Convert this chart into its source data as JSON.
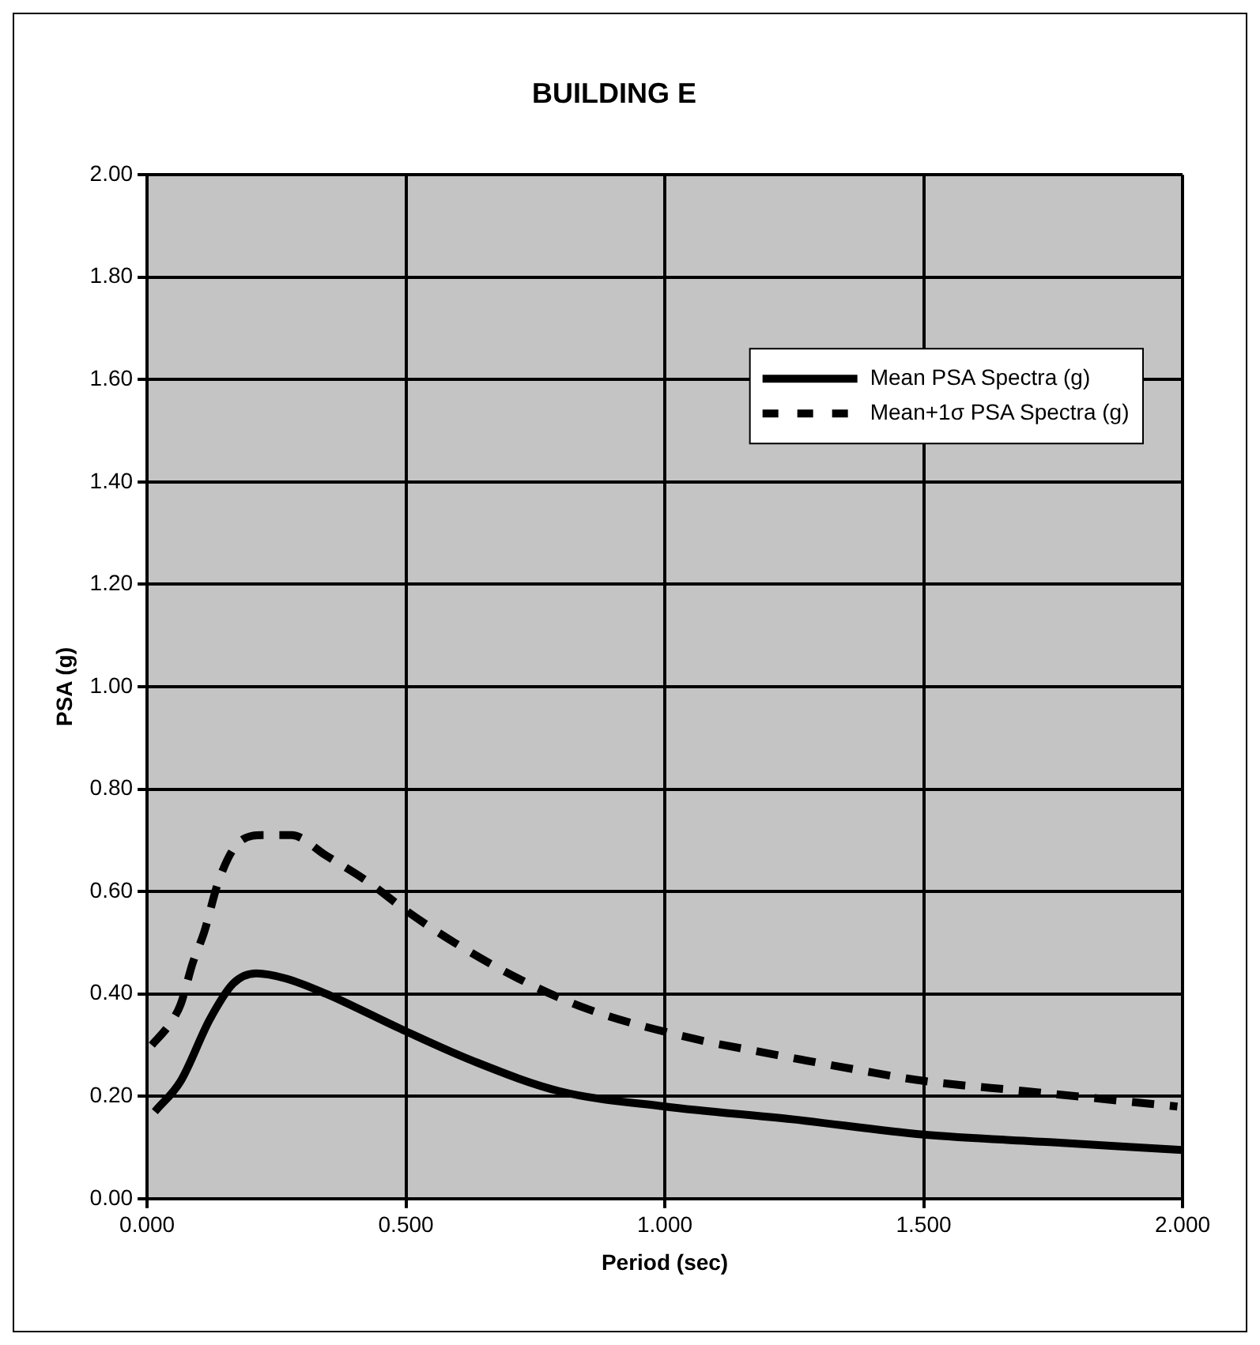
{
  "chart_data": {
    "type": "line",
    "title": "BUILDING E",
    "xlabel": "Period (sec)",
    "ylabel": "PSA (g)",
    "xlim": [
      0,
      2
    ],
    "xticks": [
      {
        "value": 0,
        "label": "0.000"
      },
      {
        "value": 0.5,
        "label": "0.500"
      },
      {
        "value": 1,
        "label": "1.000"
      },
      {
        "value": 1.5,
        "label": "1.500"
      },
      {
        "value": 2,
        "label": "2.000"
      }
    ],
    "ylim": [
      0,
      2
    ],
    "yticks": [
      {
        "value": 0,
        "label": "0.00"
      },
      {
        "value": 0.2,
        "label": "0.20"
      },
      {
        "value": 0.4,
        "label": "0.40"
      },
      {
        "value": 0.6,
        "label": "0.60"
      },
      {
        "value": 0.8,
        "label": "0.80"
      },
      {
        "value": 1,
        "label": "1.00"
      },
      {
        "value": 1.2,
        "label": "1.20"
      },
      {
        "value": 1.4,
        "label": "1.40"
      },
      {
        "value": 1.6,
        "label": "1.60"
      },
      {
        "value": 1.8,
        "label": "1.80"
      },
      {
        "value": 2,
        "label": "2.00"
      }
    ],
    "grid": true,
    "legend": "top right",
    "marker": "none",
    "series": [
      {
        "name": "Mean PSA Spectra (g)",
        "color": "#000000",
        "line_style": "solid",
        "x": [
          0.015,
          0.065,
          0.121,
          0.166,
          0.211,
          0.268,
          0.346,
          0.493,
          0.627,
          0.796,
          1.0,
          1.246,
          1.5,
          1.75,
          2.0
        ],
        "values": [
          0.17,
          0.23,
          0.35,
          0.42,
          0.44,
          0.43,
          0.4,
          0.33,
          0.27,
          0.21,
          0.18,
          0.155,
          0.125,
          0.11,
          0.095
        ]
      },
      {
        "name": "Mean+1σ PSA Spectra (g)",
        "color": "#000000",
        "line_style": "dashed",
        "x": [
          0.009,
          0.043,
          0.065,
          0.088,
          0.11,
          0.138,
          0.172,
          0.223,
          0.279,
          0.346,
          0.425,
          0.504,
          0.594,
          0.717,
          0.852,
          1.066,
          1.167,
          1.381,
          1.5,
          1.696,
          1.99
        ],
        "values": [
          0.3,
          0.34,
          0.38,
          0.46,
          0.52,
          0.62,
          0.69,
          0.71,
          0.71,
          0.67,
          0.62,
          0.56,
          0.5,
          0.43,
          0.37,
          0.31,
          0.29,
          0.25,
          0.23,
          0.21,
          0.18
        ]
      }
    ]
  }
}
